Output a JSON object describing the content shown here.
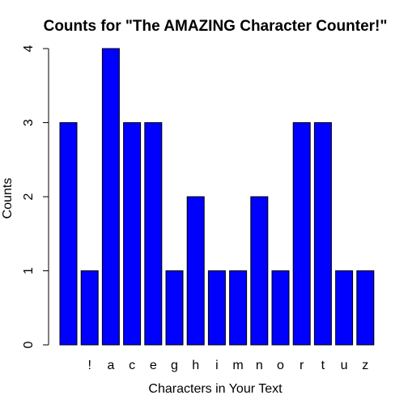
{
  "chart_data": {
    "type": "bar",
    "title": "Counts for \"The AMAZING Character Counter!\"",
    "xlabel": "Characters in Your Text",
    "ylabel": "Counts",
    "categories": [
      " ",
      "!",
      "a",
      "c",
      "e",
      "g",
      "h",
      "i",
      "m",
      "n",
      "o",
      "r",
      "t",
      "u",
      "z"
    ],
    "values": [
      3,
      1,
      4,
      3,
      3,
      1,
      2,
      1,
      1,
      2,
      1,
      3,
      3,
      1,
      1
    ],
    "ylim": [
      0,
      4
    ],
    "yticks": [
      0,
      1,
      2,
      3,
      4
    ],
    "bar_color": "#0000ff",
    "bar_border": "#000000",
    "grid": false,
    "legend": "none"
  }
}
